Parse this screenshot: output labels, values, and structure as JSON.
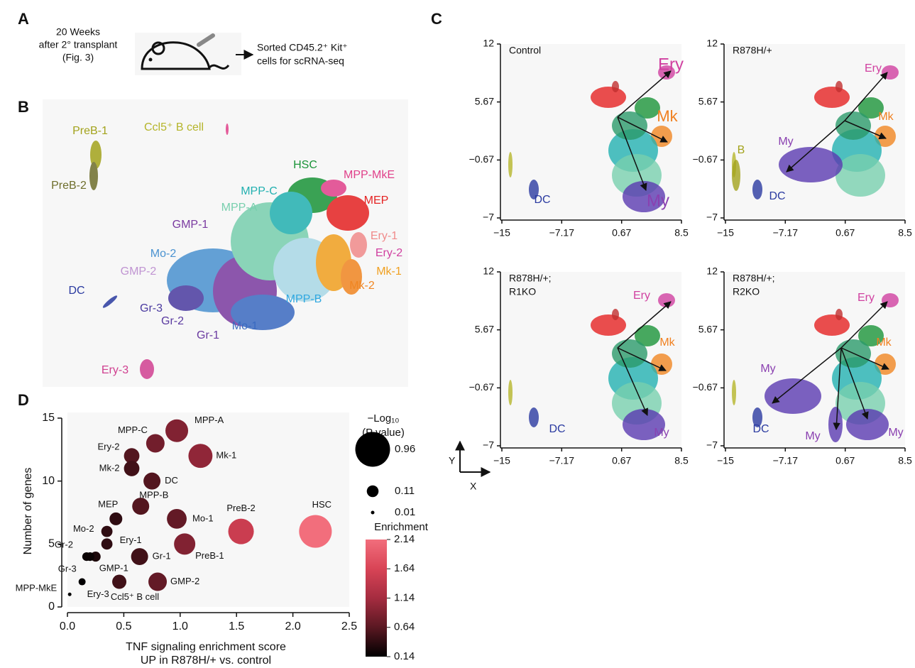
{
  "panel_labels": [
    "A",
    "B",
    "C",
    "D"
  ],
  "panel_a": {
    "timing": [
      "20 Weeks",
      "after 2° transplant",
      "(Fig. 3)"
    ],
    "result": [
      "Sorted CD45.2⁺ Kit⁺",
      "cells for scRNA-seq"
    ]
  },
  "panel_b": {
    "clusters": [
      {
        "label": "PreB-1",
        "color": "#a3a31c"
      },
      {
        "label": "Ccl5⁺ B cell",
        "color": "#b5b52a"
      },
      {
        "label": "PreB-2",
        "color": "#6e6e2c"
      },
      {
        "label": "HSC",
        "color": "#1a9438"
      },
      {
        "label": "MPP-MkE",
        "color": "#e0408a"
      },
      {
        "label": "MPP-C",
        "color": "#22b0b0"
      },
      {
        "label": "MEP",
        "color": "#e52222"
      },
      {
        "label": "MPP-A",
        "color": "#78cfae"
      },
      {
        "label": "GMP-1",
        "color": "#7a3aa0"
      },
      {
        "label": "Ery-1",
        "color": "#f08a8a"
      },
      {
        "label": "Mo-2",
        "color": "#4a92d0"
      },
      {
        "label": "Ery-2",
        "color": "#d040a0"
      },
      {
        "label": "GMP-2",
        "color": "#c094d2"
      },
      {
        "label": "Mk-1",
        "color": "#f0a020"
      },
      {
        "label": "Mk-2",
        "color": "#f08622"
      },
      {
        "label": "DC",
        "color": "#2a3aa0"
      },
      {
        "label": "MPP-B",
        "color": "#30a8e0"
      },
      {
        "label": "Gr-3",
        "color": "#4a3aa0"
      },
      {
        "label": "Gr-2",
        "color": "#5a3aa0"
      },
      {
        "label": "Mo-1",
        "color": "#3a6ac0"
      },
      {
        "label": "Gr-1",
        "color": "#6a3aa0"
      },
      {
        "label": "Ery-3",
        "color": "#d04090"
      }
    ],
    "axes": {
      "y": "Y",
      "x": "X"
    }
  },
  "chart_data": [
    {
      "type": "umap",
      "title_lines": [
        "Control"
      ],
      "xlim": [
        -15,
        8.5
      ],
      "ylim": [
        -7,
        12
      ],
      "xticks": [
        {
          "value": -15,
          "label": "−15"
        },
        {
          "value": -7.17,
          "label": "−7.17"
        },
        0.67,
        8.5
      ],
      "yticks": [
        {
          "value": -7,
          "label": "−7"
        },
        {
          "value": -0.67,
          "label": "−0.67"
        },
        5.67,
        12
      ],
      "annotations": [
        {
          "text": "Ery",
          "color": "#d040a0"
        },
        {
          "text": "Mk",
          "color": "#f08020"
        },
        {
          "text": "My",
          "color": "#8a40b0"
        },
        {
          "text": "DC",
          "color": "#2a3aa0"
        }
      ]
    },
    {
      "type": "umap",
      "title_lines": [
        "R878H/+"
      ],
      "xlim": [
        -15,
        8.5
      ],
      "ylim": [
        -7,
        12
      ],
      "xticks": [
        {
          "value": -15,
          "label": "−15"
        },
        {
          "value": -7.17,
          "label": "−7.17"
        },
        0.67,
        8.5
      ],
      "yticks": [
        {
          "value": -7,
          "label": "−7"
        },
        {
          "value": -0.67,
          "label": "−0.67"
        },
        5.67,
        12
      ],
      "annotations": [
        {
          "text": "Ery",
          "color": "#d040a0"
        },
        {
          "text": "Mk",
          "color": "#f08020"
        },
        {
          "text": "My",
          "color": "#8a40b0"
        },
        {
          "text": "B",
          "color": "#a3a31c"
        },
        {
          "text": "DC",
          "color": "#2a3aa0"
        }
      ]
    },
    {
      "type": "umap",
      "title_lines": [
        "R878H/+;",
        "R1KO"
      ],
      "xlim": [
        -15,
        8.5
      ],
      "ylim": [
        -7,
        12
      ],
      "xticks": [
        {
          "value": -15,
          "label": "−15"
        },
        {
          "value": -7.17,
          "label": "−7.17"
        },
        0.67,
        8.5
      ],
      "yticks": [
        {
          "value": -7,
          "label": "−7"
        },
        {
          "value": -0.67,
          "label": "−0.67"
        },
        5.67,
        12
      ],
      "annotations": [
        {
          "text": "Ery",
          "color": "#d040a0"
        },
        {
          "text": "Mk",
          "color": "#f08020"
        },
        {
          "text": "DC",
          "color": "#2a3aa0"
        },
        {
          "text": "My",
          "color": "#8a40b0"
        }
      ]
    },
    {
      "type": "umap",
      "title_lines": [
        "R878H/+;",
        "R2KO"
      ],
      "xlim": [
        -15,
        8.5
      ],
      "ylim": [
        -7,
        12
      ],
      "xticks": [
        {
          "value": -15,
          "label": "−15"
        },
        {
          "value": -7.17,
          "label": "−7.17"
        },
        0.67,
        8.5
      ],
      "yticks": [
        {
          "value": -7,
          "label": "−7"
        },
        {
          "value": -0.67,
          "label": "−0.67"
        },
        5.67,
        12
      ],
      "annotations": [
        {
          "text": "Ery",
          "color": "#d040a0"
        },
        {
          "text": "Mk",
          "color": "#f08020"
        },
        {
          "text": "My",
          "color": "#8a40b0"
        },
        {
          "text": "DC",
          "color": "#2a3aa0"
        },
        {
          "text": "My",
          "color": "#8a40b0"
        },
        {
          "text": "My",
          "color": "#8a40b0"
        }
      ]
    },
    {
      "type": "bubble",
      "xlabel_lines": [
        "TNF signaling enrichment score",
        "UP in R878H/+ vs. control"
      ],
      "ylabel": "Number of genes",
      "xlim": [
        0,
        2.5
      ],
      "ylim": [
        0,
        15
      ],
      "xticks": [
        {
          "value": 0,
          "label": "0.0"
        },
        0.5,
        {
          "value": 1,
          "label": "1.0"
        },
        1.5,
        {
          "value": 2,
          "label": "2.0"
        },
        2.5
      ],
      "yticks": [
        0,
        5,
        10,
        15
      ],
      "labels": [
        "MPP-A",
        "MPP-C",
        "Ery-2",
        "Mk-1",
        "Mk-2",
        "DC",
        "MEP",
        "MPP-B",
        "Mo-1",
        "PreB-2",
        "HSC",
        "Mo-2",
        "Ery-1",
        "PreB-1",
        "Gr-1",
        "Gr-2",
        "GMP-1",
        "Gr-3",
        "Ery-3",
        "Ccl5⁺ B cell",
        "GMP-2",
        "MPP-MkE"
      ],
      "x": [
        0.97,
        0.78,
        0.57,
        1.18,
        0.57,
        0.75,
        0.43,
        0.65,
        0.97,
        1.54,
        2.2,
        0.35,
        0.35,
        1.04,
        0.64,
        0.17,
        0.25,
        0.2,
        0.13,
        0.46,
        0.8,
        0.02
      ],
      "values": [
        14,
        13,
        12,
        12,
        11,
        10,
        7,
        8,
        7,
        6,
        6,
        6,
        5,
        5,
        4,
        4,
        4,
        4,
        2,
        2,
        2,
        1
      ],
      "sizes": [
        0.41,
        0.27,
        0.19,
        0.46,
        0.19,
        0.23,
        0.13,
        0.23,
        0.31,
        0.52,
        0.85,
        0.1,
        0.1,
        0.36,
        0.23,
        0.06,
        0.08,
        0.06,
        0.04,
        0.16,
        0.27,
        0.01
      ],
      "color_values": [
        0.9,
        0.8,
        0.6,
        1.0,
        0.5,
        0.6,
        0.4,
        0.6,
        0.7,
        1.5,
        2.14,
        0.4,
        0.4,
        0.9,
        0.5,
        0.2,
        0.3,
        0.2,
        0.15,
        0.5,
        0.7,
        0.14
      ],
      "size_legend": {
        "title_lines": [
          "−Log₁₀",
          "(P value)"
        ],
        "values": [
          0.96,
          0.11,
          0.01
        ]
      },
      "colorbar": {
        "title": "Enrichment",
        "lim": [
          0.14,
          2.14
        ],
        "ticks": [
          0.14,
          0.64,
          1.14,
          1.64,
          2.14
        ],
        "colors": [
          "#000000",
          "#5a1822",
          "#a52c40",
          "#d84456",
          "#f26e7c"
        ]
      }
    }
  ]
}
